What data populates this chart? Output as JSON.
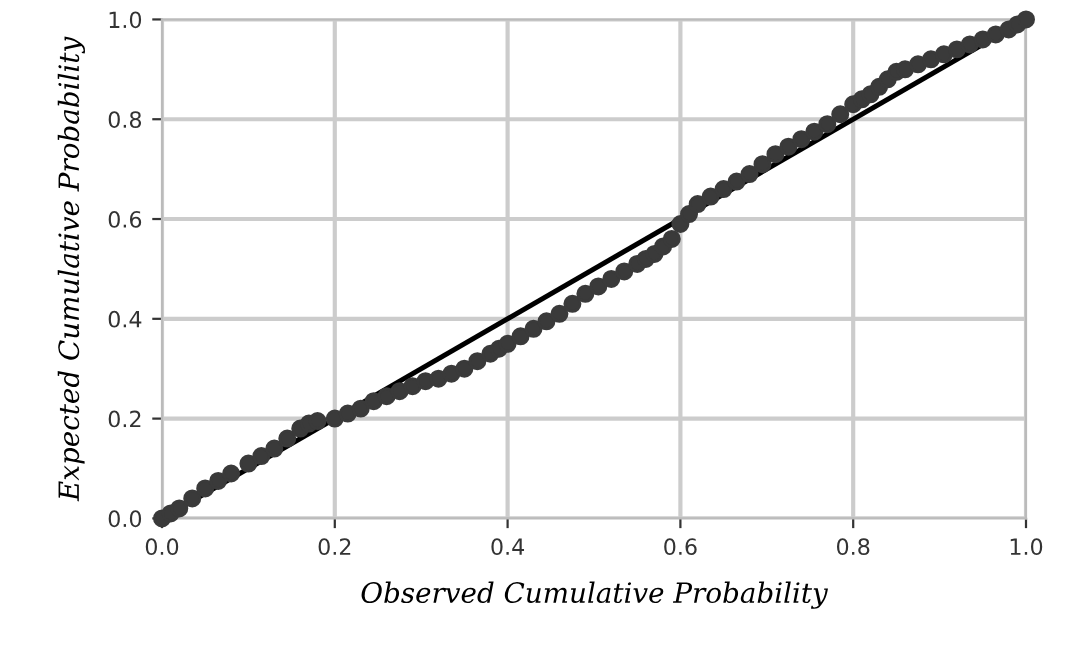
{
  "chart_data": {
    "type": "scatter",
    "xlabel": "Observed Cumulative Probability",
    "ylabel": "Expected Cumulative Probability",
    "xlim": [
      0,
      1
    ],
    "ylim": [
      0,
      1
    ],
    "xticks": [
      {
        "value": 0,
        "label": "0.0"
      },
      {
        "value": 0.2,
        "label": "0.2"
      },
      {
        "value": 0.4,
        "label": "0.4"
      },
      {
        "value": 0.6,
        "label": "0.6"
      },
      {
        "value": 0.8,
        "label": "0.8"
      },
      {
        "value": 1,
        "label": "1.0"
      }
    ],
    "yticks": [
      {
        "value": 0,
        "label": "0.0"
      },
      {
        "value": 0.2,
        "label": "0.2"
      },
      {
        "value": 0.4,
        "label": "0.4"
      },
      {
        "value": 0.6,
        "label": "0.6"
      },
      {
        "value": 0.8,
        "label": "0.8"
      },
      {
        "value": 1,
        "label": "1.0"
      }
    ],
    "grid": true,
    "series": [
      {
        "marker": "circle",
        "color": "#3a3a3a",
        "x": [
          0.0,
          0.01,
          0.02,
          0.035,
          0.05,
          0.065,
          0.08,
          0.1,
          0.115,
          0.13,
          0.145,
          0.16,
          0.17,
          0.18,
          0.2,
          0.215,
          0.23,
          0.245,
          0.26,
          0.275,
          0.29,
          0.305,
          0.32,
          0.335,
          0.35,
          0.365,
          0.38,
          0.39,
          0.4,
          0.415,
          0.43,
          0.445,
          0.46,
          0.475,
          0.49,
          0.505,
          0.52,
          0.535,
          0.55,
          0.56,
          0.57,
          0.58,
          0.59,
          0.6,
          0.61,
          0.62,
          0.635,
          0.65,
          0.665,
          0.68,
          0.695,
          0.71,
          0.725,
          0.74,
          0.755,
          0.77,
          0.785,
          0.8,
          0.81,
          0.82,
          0.83,
          0.84,
          0.85,
          0.86,
          0.875,
          0.89,
          0.905,
          0.92,
          0.935,
          0.95,
          0.965,
          0.98,
          0.99,
          1.0
        ],
        "values": [
          0.0,
          0.01,
          0.02,
          0.04,
          0.06,
          0.075,
          0.09,
          0.11,
          0.125,
          0.14,
          0.16,
          0.18,
          0.19,
          0.195,
          0.2,
          0.21,
          0.22,
          0.235,
          0.245,
          0.255,
          0.265,
          0.275,
          0.28,
          0.29,
          0.3,
          0.315,
          0.33,
          0.34,
          0.35,
          0.365,
          0.38,
          0.395,
          0.41,
          0.43,
          0.45,
          0.465,
          0.48,
          0.495,
          0.51,
          0.52,
          0.53,
          0.545,
          0.56,
          0.59,
          0.61,
          0.63,
          0.645,
          0.66,
          0.675,
          0.69,
          0.71,
          0.73,
          0.745,
          0.76,
          0.775,
          0.79,
          0.81,
          0.83,
          0.84,
          0.85,
          0.865,
          0.88,
          0.895,
          0.9,
          0.91,
          0.92,
          0.93,
          0.94,
          0.95,
          0.96,
          0.97,
          0.98,
          0.99,
          1.0
        ]
      },
      {
        "type": "line",
        "color": "#000000",
        "x": [
          0,
          1
        ],
        "values": [
          0,
          1
        ]
      }
    ]
  }
}
